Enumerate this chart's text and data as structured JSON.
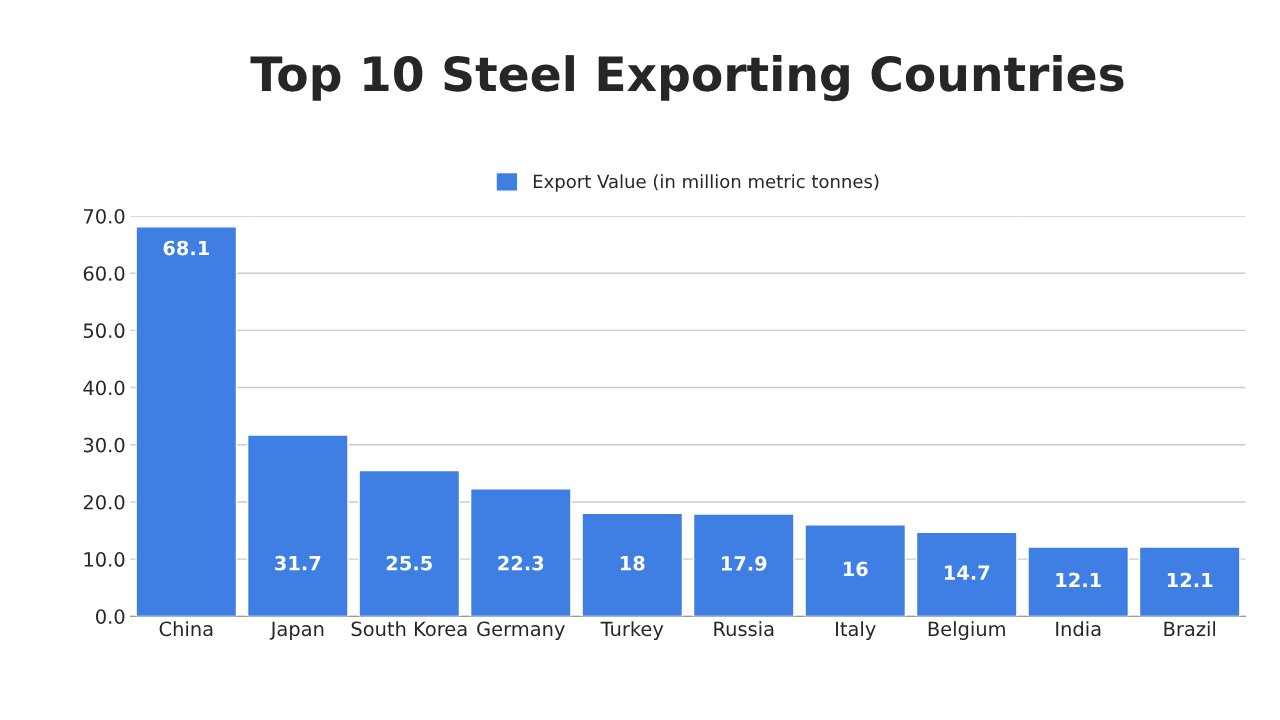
{
  "chart_data": {
    "type": "bar",
    "title": "Top 10 Steel Exporting Countries",
    "categories": [
      "China",
      "Japan",
      "South Korea",
      "Germany",
      "Turkey",
      "Russia",
      "Italy",
      "Belgium",
      "India",
      "Brazil"
    ],
    "series": [
      {
        "name": "Export Value (in million metric tonnes)",
        "color": "#3f7fe3",
        "values": [
          68.1,
          31.7,
          25.5,
          22.3,
          18,
          17.9,
          16,
          14.7,
          12.1,
          12.1
        ]
      }
    ],
    "ylim": [
      0,
      70
    ],
    "yticks": [
      {
        "value": 0,
        "label": "0.0"
      },
      {
        "value": 10,
        "label": "10.0"
      },
      {
        "value": 20,
        "label": "20.0"
      },
      {
        "value": 30,
        "label": "30.0"
      },
      {
        "value": 40,
        "label": "40.0"
      },
      {
        "value": 50,
        "label": "50.0"
      },
      {
        "value": 60,
        "label": "60.0"
      },
      {
        "value": 70,
        "label": "70.0"
      }
    ],
    "grid": "y",
    "legend": "top",
    "data_labels": true
  }
}
